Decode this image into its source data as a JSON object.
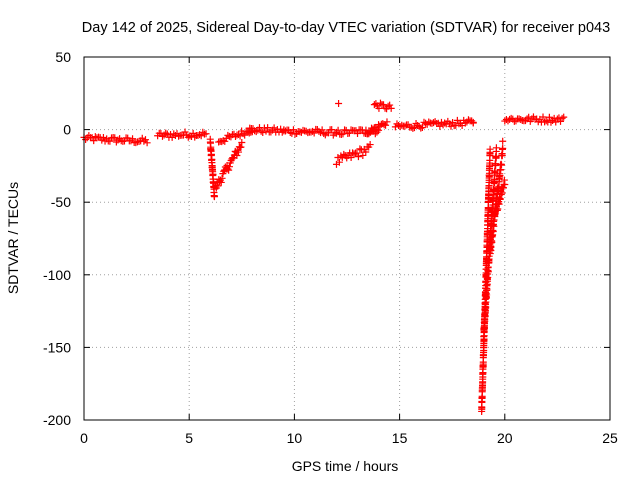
{
  "chart_data": {
    "type": "scatter",
    "title": "Day 142 of 2025, Sidereal Day-to-day VTEC variation (SDTVAR) for receiver p043",
    "xlabel": "GPS time / hours",
    "ylabel": "SDTVAR / TECUs",
    "xlim": [
      0,
      25
    ],
    "ylim": [
      -200,
      50
    ],
    "xticks": [
      0,
      5,
      10,
      15,
      20,
      25
    ],
    "yticks": [
      -200,
      -150,
      -100,
      -50,
      0,
      50
    ],
    "grid": true,
    "marker": "+",
    "marker_color": "#ff0000",
    "series": [
      {
        "name": "SDTVAR",
        "segments": [
          {
            "x": [
              0.0,
              3.0
            ],
            "y": [
              -6,
              -8
            ],
            "spread": 2
          },
          {
            "x": [
              3.5,
              5.8
            ],
            "y": [
              -4,
              -3
            ],
            "spread": 2
          },
          {
            "x": [
              6.0,
              6.2
            ],
            "y": [
              -8,
              -46
            ],
            "spread": 2
          },
          {
            "x": [
              6.25,
              7.5
            ],
            "y": [
              -40,
              -10
            ],
            "spread": 3
          },
          {
            "x": [
              6.4,
              8.0
            ],
            "y": [
              -8,
              0
            ],
            "spread": 2
          },
          {
            "x": [
              7.8,
              9.5
            ],
            "y": [
              0,
              -1
            ],
            "spread": 2
          },
          {
            "x": [
              9.5,
              12.0
            ],
            "y": [
              -1,
              -2
            ],
            "spread": 2
          },
          {
            "x": [
              12.0,
              13.6
            ],
            "y": [
              -22,
              -13
            ],
            "spread": 3
          },
          {
            "x": [
              12.0,
              14.0
            ],
            "y": [
              -2,
              -1
            ],
            "spread": 2
          },
          {
            "x": [
              13.4,
              14.4
            ],
            "y": [
              -2,
              5
            ],
            "spread": 2
          },
          {
            "x": [
              13.8,
              14.6
            ],
            "y": [
              17,
              15
            ],
            "spread": 2
          },
          {
            "x": [
              14.8,
              18.5
            ],
            "y": [
              2,
              5
            ],
            "spread": 2
          },
          {
            "x": [
              18.9,
              19.3
            ],
            "y": [
              -193,
              -15
            ],
            "spread": 2
          },
          {
            "x": [
              19.0,
              19.6
            ],
            "y": [
              -140,
              -15
            ],
            "spread": 3
          },
          {
            "x": [
              19.3,
              19.9
            ],
            "y": [
              -85,
              -15
            ],
            "spread": 3
          },
          {
            "x": [
              19.5,
              20.0
            ],
            "y": [
              -60,
              -35
            ],
            "spread": 3
          },
          {
            "x": [
              20.0,
              22.8
            ],
            "y": [
              7,
              7
            ],
            "spread": 2
          }
        ],
        "outliers": [
          {
            "x": 12.1,
            "y": 18
          },
          {
            "x": 18.5,
            "y": 5
          },
          {
            "x": 19.9,
            "y": -8
          }
        ]
      }
    ]
  }
}
